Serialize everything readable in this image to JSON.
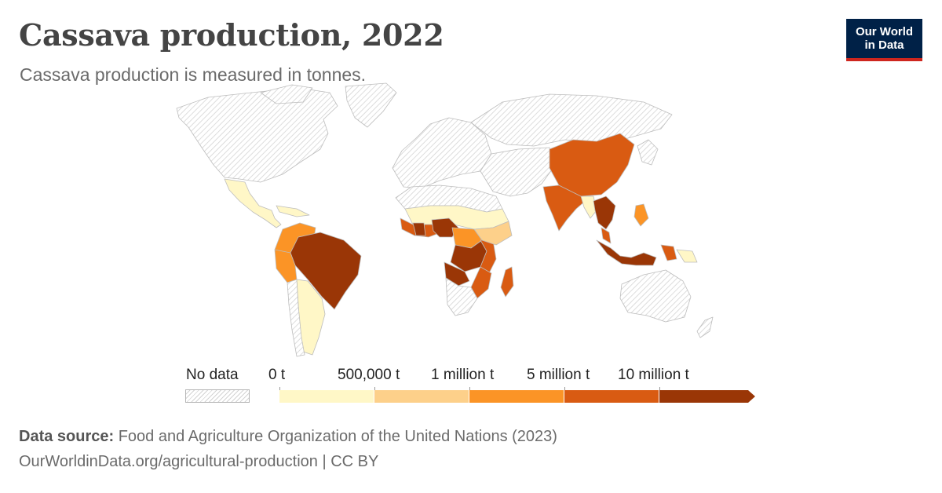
{
  "header": {
    "title": "Cassava production, 2022",
    "subtitle": "Cassava production is measured in tonnes."
  },
  "logo": {
    "line1": "Our World",
    "line2": "in Data"
  },
  "legend": {
    "no_data_label": "No data",
    "bins": [
      {
        "label": "0 t",
        "color": "#fff7c7"
      },
      {
        "label": "500,000 t",
        "color": "#fdd08a"
      },
      {
        "label": "1 million t",
        "color": "#fb9426"
      },
      {
        "label": "5 million t",
        "color": "#d95b12"
      },
      {
        "label": "10 million t",
        "color": "#9a3606"
      }
    ]
  },
  "footer": {
    "source_label": "Data source:",
    "source_text": "Food and Agriculture Organization of the United Nations (2023)",
    "credits": "OurWorldinData.org/agricultural-production | CC BY"
  }
}
